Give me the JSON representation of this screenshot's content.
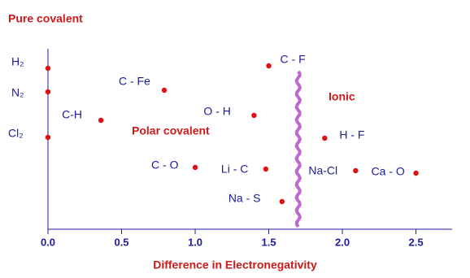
{
  "chart_data": {
    "type": "scatter",
    "annotations": [
      "Pure covalent",
      "Polar covalent",
      "Ionic"
    ],
    "x_label": "Difference in Electronegativity",
    "xlim": [
      0,
      2.74
    ],
    "xticks": [
      {
        "value": 0,
        "label": "0.0"
      },
      0.5,
      {
        "value": 1,
        "label": "1.0"
      },
      1.5,
      {
        "value": 2,
        "label": "2.0"
      },
      2.5
    ],
    "color": "#dd1111",
    "boundary_color": "#b050c8",
    "boundary_x": 1.7,
    "points": [
      {
        "label": "H₂",
        "x": 0
      },
      {
        "label": "N₂",
        "x": 0
      },
      {
        "label": "Cl₂",
        "x": 0
      },
      {
        "label": "C-H",
        "x": 0.36
      },
      {
        "label": "C - Fe",
        "x": 0.79
      },
      {
        "label": "C - F",
        "x": 1.5
      },
      {
        "label": "O - H",
        "x": 1.4
      },
      {
        "label": "C - O",
        "x": 1.0
      },
      {
        "label": "Li - C",
        "x": 1.48
      },
      {
        "label": "Na - S",
        "x": 1.59
      },
      {
        "label": "H - F",
        "x": 1.88
      },
      {
        "label": "Na-Cl",
        "x": 2.09
      },
      {
        "label": "Ca - O",
        "x": 2.5
      }
    ]
  }
}
